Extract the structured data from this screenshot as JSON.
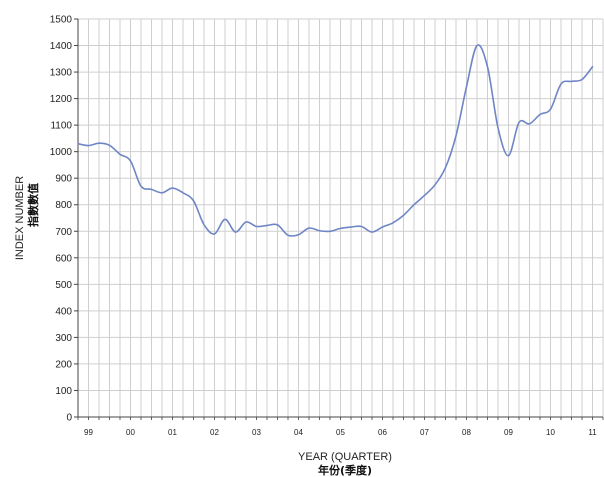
{
  "chart_data": {
    "type": "line",
    "xlabel": "YEAR (QUARTER)",
    "xlabel_zh": "年份(季度)",
    "ylabel": "INDEX NUMBER",
    "ylabel_zh": "指數數值",
    "ylim": [
      0,
      1500
    ],
    "yticks": [
      0,
      100,
      200,
      300,
      400,
      500,
      600,
      700,
      800,
      900,
      1000,
      1100,
      1200,
      1300,
      1400,
      1500
    ],
    "xlim": [
      0,
      50
    ],
    "year_ticks": [
      {
        "label": "99",
        "x": 1
      },
      {
        "label": "00",
        "x": 5
      },
      {
        "label": "01",
        "x": 9
      },
      {
        "label": "02",
        "x": 13
      },
      {
        "label": "03",
        "x": 17
      },
      {
        "label": "04",
        "x": 21
      },
      {
        "label": "05",
        "x": 25
      },
      {
        "label": "06",
        "x": 29
      },
      {
        "label": "07",
        "x": 33
      },
      {
        "label": "08",
        "x": 37
      },
      {
        "label": "09",
        "x": 41
      },
      {
        "label": "10",
        "x": 45
      },
      {
        "label": "11",
        "x": 49
      }
    ],
    "grid": true,
    "line_color": "#6f86c6",
    "series": [
      {
        "values": [
          [
            0,
            1030
          ],
          [
            1,
            1023
          ],
          [
            2,
            1032
          ],
          [
            3,
            1024
          ],
          [
            4,
            990
          ],
          [
            5,
            965
          ],
          [
            6,
            870
          ],
          [
            7,
            858
          ],
          [
            8,
            845
          ],
          [
            9,
            863
          ],
          [
            10,
            845
          ],
          [
            11,
            815
          ],
          [
            12,
            725
          ],
          [
            13,
            690
          ],
          [
            14,
            745
          ],
          [
            15,
            697
          ],
          [
            16,
            735
          ],
          [
            17,
            718
          ],
          [
            18,
            722
          ],
          [
            19,
            724
          ],
          [
            20,
            685
          ],
          [
            21,
            687
          ],
          [
            22,
            712
          ],
          [
            23,
            702
          ],
          [
            24,
            700
          ],
          [
            25,
            711
          ],
          [
            26,
            716
          ],
          [
            27,
            718
          ],
          [
            28,
            697
          ],
          [
            29,
            716
          ],
          [
            30,
            732
          ],
          [
            31,
            760
          ],
          [
            32,
            800
          ],
          [
            33,
            835
          ],
          [
            34,
            875
          ],
          [
            35,
            940
          ],
          [
            36,
            1060
          ],
          [
            37,
            1245
          ],
          [
            38,
            1400
          ],
          [
            39,
            1320
          ],
          [
            40,
            1090
          ],
          [
            41,
            985
          ],
          [
            42,
            1110
          ],
          [
            43,
            1105
          ],
          [
            44,
            1140
          ],
          [
            45,
            1160
          ],
          [
            46,
            1255
          ],
          [
            47,
            1265
          ],
          [
            48,
            1272
          ],
          [
            49,
            1320
          ]
        ]
      }
    ]
  }
}
